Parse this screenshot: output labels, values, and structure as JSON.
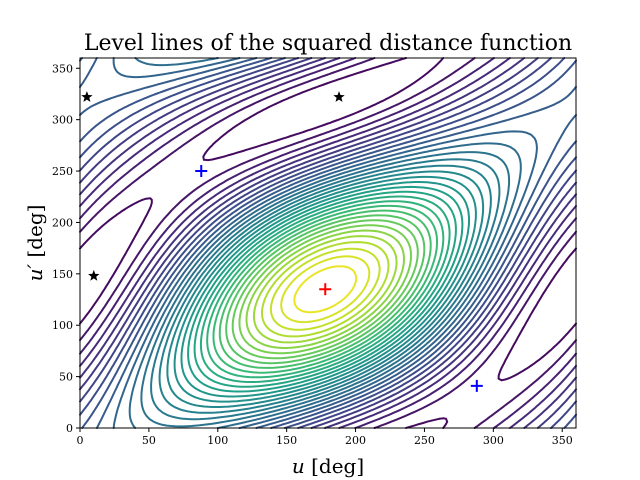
{
  "chart_data": {
    "type": "contour",
    "title": "Level lines of the squared distance function",
    "xlabel_var": "u",
    "xlabel_unit": " [deg]",
    "ylabel_var": "u′",
    "ylabel_unit": " [deg]",
    "xlim": [
      0,
      360
    ],
    "ylim": [
      0,
      360
    ],
    "xticks": [
      0,
      50,
      100,
      150,
      200,
      250,
      300,
      350
    ],
    "yticks": [
      0,
      50,
      100,
      150,
      200,
      250,
      300,
      350
    ],
    "colormap": "viridis",
    "grid": false,
    "maximum": {
      "marker": "plus",
      "color": "#ff0000",
      "x": 178,
      "y": 135
    },
    "minima": [
      {
        "marker": "plus",
        "color": "#0000ff",
        "x": 88,
        "y": 250
      },
      {
        "marker": "plus",
        "color": "#0000ff",
        "x": 288,
        "y": 41
      }
    ],
    "saddles": [
      {
        "marker": "star",
        "color": "#000000",
        "x": 5,
        "y": 322
      },
      {
        "marker": "star",
        "color": "#000000",
        "x": 188,
        "y": 322
      },
      {
        "marker": "star",
        "color": "#000000",
        "x": 10,
        "y": 148
      }
    ]
  }
}
